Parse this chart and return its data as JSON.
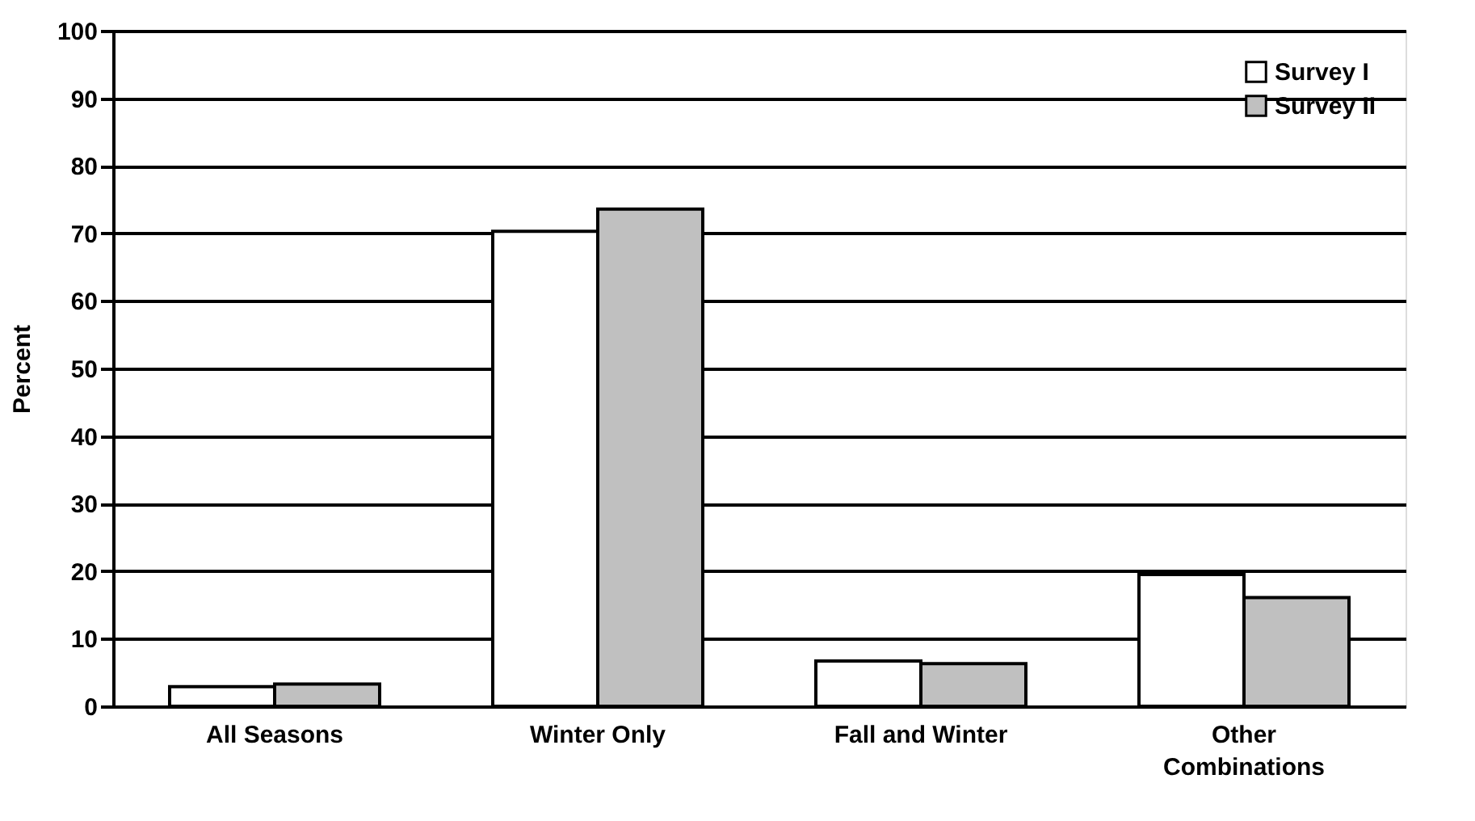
{
  "chart_data": {
    "type": "bar",
    "ylabel": "Percent",
    "categories": [
      "All Seasons",
      "Winter Only",
      "Fall and Winter",
      "Other Combinations"
    ],
    "series": [
      {
        "name": "Survey I",
        "color": "#ffffff",
        "values": [
          2.9,
          70.3,
          6.7,
          19.5
        ]
      },
      {
        "name": "Survey II",
        "color": "#c0c0c0",
        "values": [
          3.3,
          73.6,
          6.3,
          16.1
        ]
      }
    ],
    "ylim": [
      0,
      100
    ],
    "yticks": [
      0,
      10,
      20,
      30,
      40,
      50,
      60,
      70,
      80,
      90,
      100
    ],
    "grid": "y",
    "legend": "top right"
  }
}
